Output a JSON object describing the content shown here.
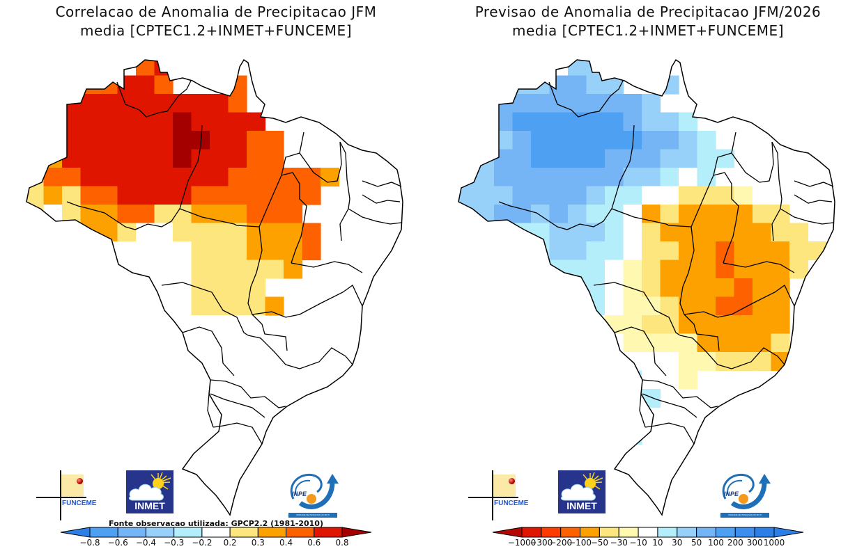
{
  "left_panel": {
    "title_line1": "Correlacao de Anomalia de Precipitacao JFM",
    "title_line2": "media [CPTEC1.2+INMET+FUNCEME]",
    "source_note": "Fonte observacao utilizada: GPCP2.2 (1981-2010)",
    "colorbar": {
      "labels": [
        "-0.8",
        "-0.6",
        "-0.4",
        "-0.3",
        "-0.2",
        "0.2",
        "0.3",
        "0.4",
        "0.6",
        "0.8"
      ],
      "colors": [
        "#2d7fe8",
        "#4ea1f2",
        "#76b5f5",
        "#97d0f8",
        "#b4eefa",
        "#ffffff",
        "#fee67f",
        "#fca100",
        "#fd6100",
        "#e01500",
        "#a40000"
      ]
    }
  },
  "right_panel": {
    "title_line1": "Previsao de Anomalia de Precipitacao JFM/2026",
    "title_line2": "media [CPTEC1.2+INMET+FUNCEME]",
    "colorbar": {
      "labels": [
        "-1000",
        "-300",
        "-200",
        "-100",
        "-50",
        "-30",
        "-10",
        "10",
        "30",
        "50",
        "100",
        "200",
        "300",
        "1000"
      ],
      "colors": [
        "#b40800",
        "#e01500",
        "#fd3a00",
        "#fd6100",
        "#fca100",
        "#fee67f",
        "#fff8b0",
        "#ffffff",
        "#b4eefa",
        "#97d0f8",
        "#76b5f5",
        "#4ea1f2",
        "#3c8ef0",
        "#2d7fe8",
        "#2d7fe8"
      ]
    }
  },
  "logos": {
    "funceme": "FUNCEME",
    "inmet": "INMET",
    "inpe": "INPE",
    "inpe_band": "UNIDADE DE PESQUISA DO MCTI"
  },
  "chart_data": [
    {
      "type": "heatmap",
      "title": "Correlacao de Anomalia de Precipitacao JFM",
      "subtitle": "media [CPTEC1.2+INMET+FUNCEME]",
      "region": "Brazil",
      "variable": "correlation",
      "legend": "bottom",
      "colorbar_ticks": [
        -0.8,
        -0.6,
        -0.4,
        -0.3,
        -0.2,
        0.2,
        0.3,
        0.4,
        0.6,
        0.8
      ],
      "note": "Fonte observacao utilizada: GPCP2.2 (1981-2010)",
      "grid_rows_north_to_south": [
        "......56........",
        "...55665...5....",
        ".56666666665....",
        ".566666676666...",
        ".5666666776655..",
        ".4666666766655..",
        "35566666666555554",
        "3435566665555555",
        "303445533444555",
        "3334430033334445",
        ".300000003334445",
        "..0000000333334.",
        "..00330003333.",
        "...00330033334.",
        "....000000000..",
        ".....0-00000...",
        ".....0--00.....",
        ".....000.......",
        "......40.......",
        ".....543.......",
        ".....543.......",
        "......3........"
      ]
    },
    {
      "type": "heatmap",
      "title": "Previsao de Anomalia de Precipitacao JFM/2026",
      "subtitle": "media [CPTEC1.2+INMET+FUNCEME]",
      "region": "Brazil",
      "variable": "precipitation anomaly (mm)",
      "legend": "bottom",
      "colorbar_ticks": [
        -1000,
        -300,
        -200,
        -100,
        -50,
        -30,
        -10,
        10,
        30,
        50,
        100,
        200,
        300,
        1000
      ],
      "grid_rows_north_to_south": [
        "......cc........",
        "...ccddcc..c....",
        ".cddddddddc.....",
        ".cdeeeeeedccb...",
        ".ccdeeeeeeddcb..",
        ".cddeeeedddccbb.",
        "ccdddddddccb0b0..",
        "cccddddcbb0022210",
        "ccddcdcbb032333322",
        "cccbbcccb0233333322",
        ".cb0bccbb02233433322",
        "..bbbbbb01233343332",
        "..bbcbbb0123333433.",
        "...bbbbb0112334433.",
        "....b0001122333333.",
        ".....cb00111133332.",
        ".....bbb0000112223.",
        ".....bbbbb001......",
        "......bbbbb........",
        ".....cbbbb.........",
        ".....ccbbb.........",
        "......cb..........."
      ]
    }
  ]
}
